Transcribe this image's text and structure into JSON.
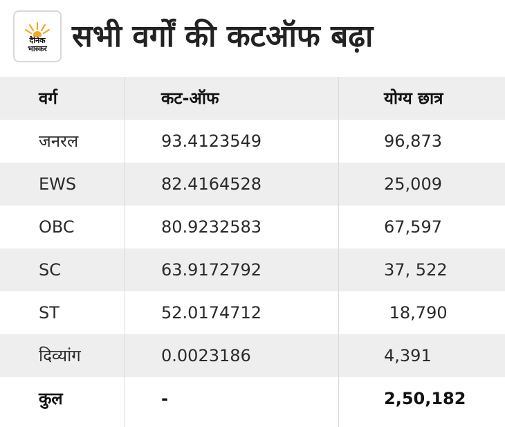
{
  "brand": {
    "logo_line1": "दैनिक",
    "logo_line2": "भास्कर",
    "sun_color": "#f5a623",
    "logo_icon": "sun-rays-icon"
  },
  "title": "सभी वर्गों की कटऑफ बढ़ा",
  "table": {
    "headers": [
      "वर्ग",
      "कट-ऑफ",
      "योग्य छात्र"
    ],
    "rows": [
      [
        "जनरल",
        "93.4123549",
        "96,873"
      ],
      [
        "EWS",
        "82.4164528",
        "25,009"
      ],
      [
        "OBC",
        "80.9232583",
        "67,597"
      ],
      [
        "SC",
        "63.9172792",
        "37, 522"
      ],
      [
        "ST",
        "52.0174712",
        " 18,790"
      ],
      [
        "दिव्यांग",
        "0.0023186",
        "4,391"
      ]
    ],
    "total": [
      "कुल",
      "-",
      "2,50,182"
    ]
  },
  "colors": {
    "row_shade": "#eeeeee",
    "divider": "#d9d9d9"
  }
}
